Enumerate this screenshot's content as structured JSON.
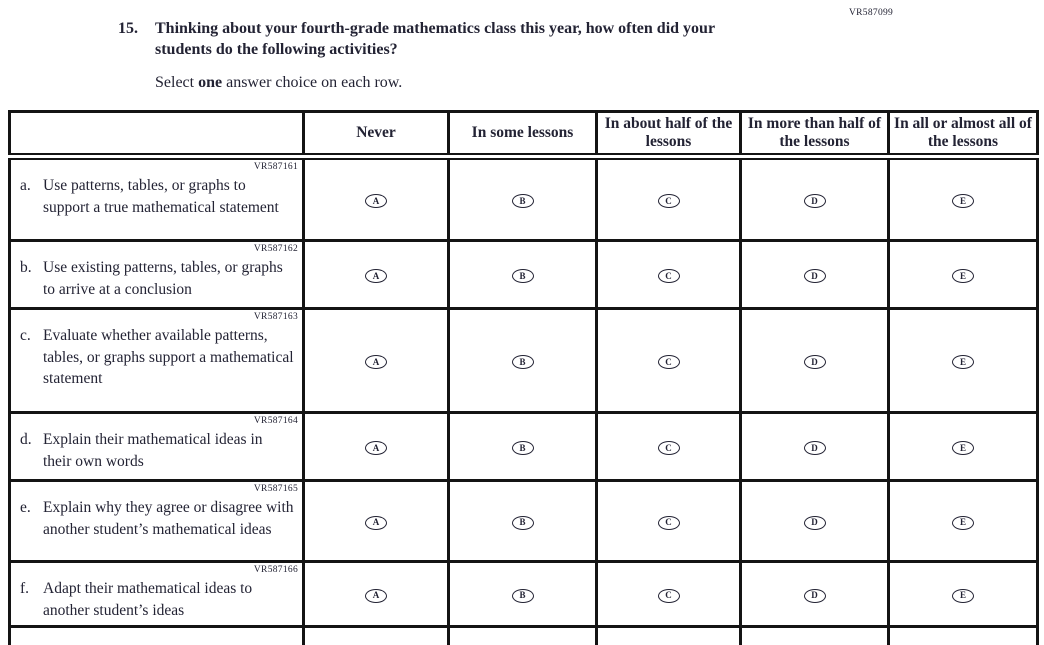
{
  "page": {
    "form_code": "VR587099"
  },
  "question": {
    "number": "15.",
    "stem": "Thinking about your fourth-grade mathematics class this year, how often did your students do the following activities?",
    "instruction": {
      "prefix": "Select ",
      "bold": "one",
      "suffix": " answer choice on each row."
    }
  },
  "table": {
    "header": [
      "",
      "Never",
      "In some lessons",
      "In about half of the lessons",
      "In more than half of the lessons",
      "In all or almost all of the lessons"
    ],
    "options": [
      "A",
      "B",
      "C",
      "D",
      "E"
    ],
    "rows": [
      {
        "code": "VR587161",
        "letter": "a.",
        "text": "Use patterns, tables, or graphs to support a true mathematical statement"
      },
      {
        "code": "VR587162",
        "letter": "b.",
        "text": "Use existing patterns, tables, or graphs to arrive at a conclusion"
      },
      {
        "code": "VR587163",
        "letter": "c.",
        "text": "Evaluate whether available patterns, tables, or graphs support a mathematical statement"
      },
      {
        "code": "VR587164",
        "letter": "d.",
        "text": "Explain their mathematical ideas in their own words"
      },
      {
        "code": "VR587165",
        "letter": "e.",
        "text": "Explain why they agree or disagree with another student’s mathematical ideas"
      },
      {
        "code": "VR587166",
        "letter": "f.",
        "text": "Adapt their mathematical ideas to another student’s ideas"
      }
    ]
  },
  "colors": {
    "ink": "#232334",
    "border": "#141414"
  }
}
